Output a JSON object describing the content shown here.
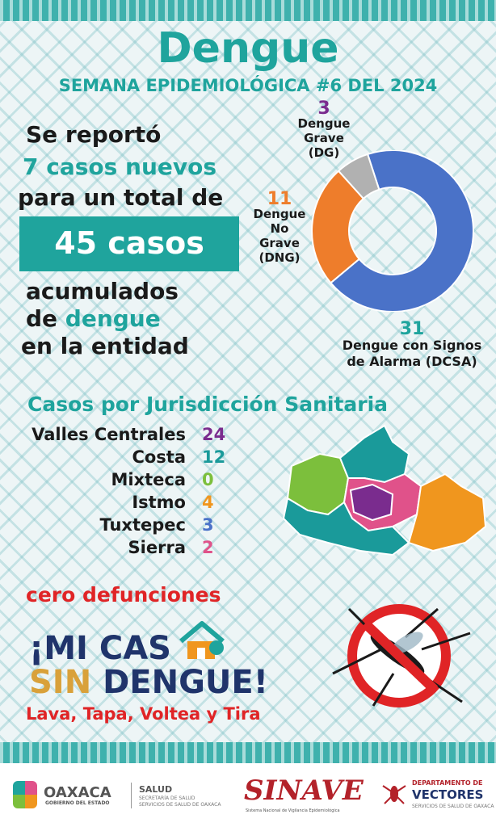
{
  "title": "Dengue",
  "week": "SEMANA EPIDEMIOLÓGICA #6 DEL 2024",
  "summary": {
    "line1": "Se reportó",
    "line2": "7 casos nuevos",
    "line3": "para un total de",
    "total_box": "45 casos",
    "line4": "acumulados",
    "line5a": "de ",
    "line5b": "dengue",
    "line6": "en la entidad"
  },
  "chart_data": {
    "type": "pie",
    "donut": true,
    "series": [
      {
        "name": "Dengue con Signos de Alarma (DCSA)",
        "value": 31,
        "color": "#4a72c8"
      },
      {
        "name": "Dengue No Grave (DNG)",
        "value": 11,
        "color": "#ee7d2b"
      },
      {
        "name": "Dengue Grave (DG)",
        "value": 3,
        "color": "#b1b1b1"
      }
    ],
    "labels": {
      "dg_num": "3",
      "dg_l1": "Dengue",
      "dg_l2": "Grave (DG)",
      "dng_num": "11",
      "dng_l1": "Dengue",
      "dng_l2": "No",
      "dng_l3": "Grave",
      "dng_l4": "(DNG)",
      "dcsa_num": "31",
      "dcsa_l1": "Dengue con Signos",
      "dcsa_l2": "de Alarma (DCSA)"
    }
  },
  "jurisdictions": {
    "heading": "Casos por Jurisdicción Sanitaria",
    "rows": [
      {
        "name": "Valles Centrales",
        "value": "24",
        "color": "#7a2c8e"
      },
      {
        "name": "Costa",
        "value": "12",
        "color": "#1a9a9a"
      },
      {
        "name": "Mixteca",
        "value": "0",
        "color": "#7cbf3c"
      },
      {
        "name": "Istmo",
        "value": "4",
        "color": "#f0961e"
      },
      {
        "name": "Tuxtepec",
        "value": "3",
        "color": "#4a72c8"
      },
      {
        "name": "Sierra",
        "value": "2",
        "color": "#e0528a"
      }
    ]
  },
  "deaths": "cero defunciones",
  "campaign": {
    "line1": "¡MI CAS",
    "line2a": "SIN ",
    "line2b": "DENGUE!",
    "slogan": "Lava, Tapa, Voltea y Tira"
  },
  "footer": {
    "oaxaca": "OAXACA",
    "gobierno": "GOBIERNO DEL ESTADO",
    "salud": "SALUD",
    "salud_sub1": "SECRETARÍA DE SALUD",
    "salud_sub2": "SERVICIOS DE SALUD DE OAXACA",
    "sinave": "SINAVE",
    "sinave_sub": "Sistema Nacional de Vigilancia Epidemiológica",
    "depto1": "DEPARTAMENTO DE",
    "depto2": "VECTORES",
    "depto3": "SERVICIOS DE SALUD DE OAXACA"
  }
}
